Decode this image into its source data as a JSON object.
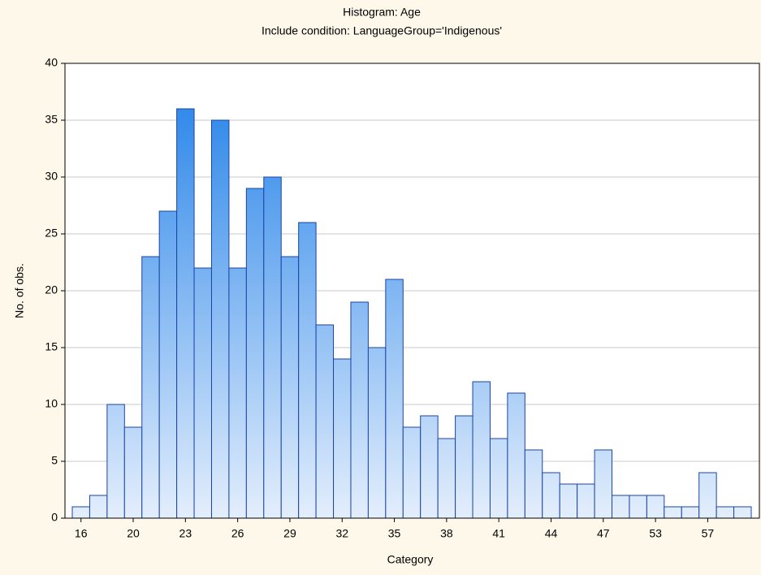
{
  "chart_data": {
    "type": "bar",
    "title": "Histogram: Age",
    "subtitle": "Include condition: LanguageGroup='Indigenous'",
    "x_label": "Category",
    "y_label": "No. of obs.",
    "categories": [
      "16",
      null,
      null,
      "20",
      null,
      null,
      "23",
      null,
      null,
      "26",
      null,
      null,
      "29",
      null,
      null,
      "32",
      null,
      null,
      "35",
      null,
      null,
      "38",
      null,
      null,
      "41",
      null,
      null,
      "44",
      null,
      null,
      "47",
      null,
      null,
      "53",
      null,
      null,
      "57",
      null,
      null
    ],
    "values": [
      1,
      2,
      10,
      8,
      23,
      27,
      36,
      22,
      35,
      22,
      29,
      30,
      23,
      26,
      17,
      14,
      19,
      15,
      21,
      8,
      9,
      7,
      9,
      12,
      7,
      11,
      6,
      4,
      3,
      3,
      6,
      2,
      2,
      2,
      1,
      1,
      4,
      1,
      1
    ],
    "color": "#1e7fe8",
    "ylim": [
      0,
      40
    ],
    "yticks": [
      0,
      5,
      10,
      15,
      20,
      25,
      30,
      35,
      40
    ],
    "grid": true
  }
}
